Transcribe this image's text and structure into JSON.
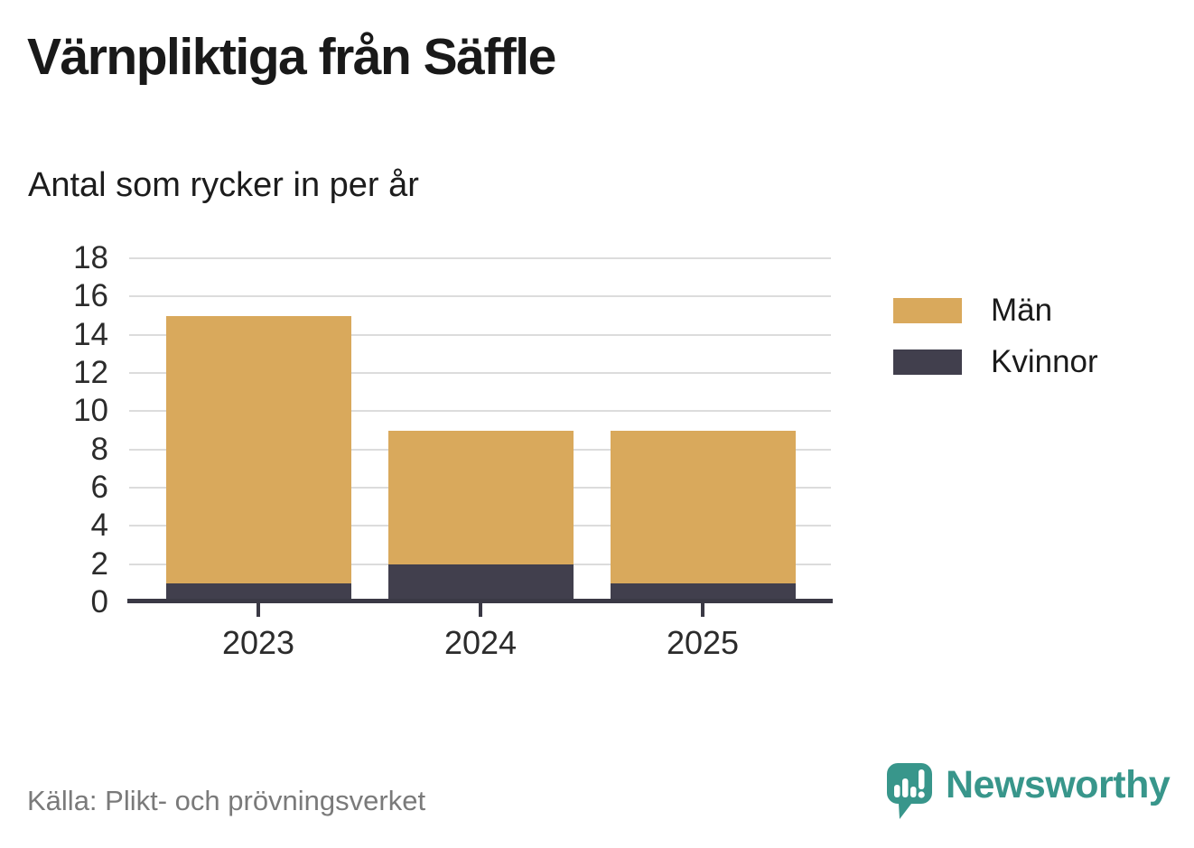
{
  "chart_data": {
    "type": "bar",
    "stacked": true,
    "title": "Värnpliktiga från Säffle",
    "subtitle": "Antal som rycker in per år",
    "categories": [
      "2023",
      "2024",
      "2025"
    ],
    "series": [
      {
        "name": "Män",
        "color": "#d9a95c",
        "values": [
          14,
          7,
          8
        ]
      },
      {
        "name": "Kvinnor",
        "color": "#413f4d",
        "values": [
          1,
          2,
          1
        ]
      }
    ],
    "stack_totals": [
      15,
      9,
      9
    ],
    "ylim": [
      0,
      18
    ],
    "yticks": [
      0,
      2,
      4,
      6,
      8,
      10,
      12,
      14,
      16,
      18
    ],
    "grid": true,
    "legend_position": "right",
    "xlabel": "",
    "ylabel": ""
  },
  "source": {
    "label": "Källa: Plikt- och prövningsverket"
  },
  "branding": {
    "name": "Newsworthy",
    "icon": "speech-bubble-with-bar-chart-and-exclamation",
    "color": "#38968b"
  },
  "colors": {
    "men": "#d9a95c",
    "women": "#413f4d",
    "axis": "#3a3945",
    "gridline": "#dcdcdc",
    "title": "#191919",
    "source_text": "#7a7a7a",
    "brand_teal": "#38968b",
    "background": "#ffffff"
  }
}
